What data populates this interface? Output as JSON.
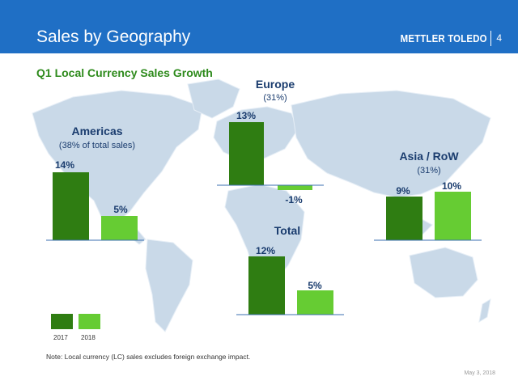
{
  "header": {
    "title": "Sales by Geography",
    "brand": "METTLER TOLEDO",
    "page_number": "4"
  },
  "subtitle": "Q1 Local Currency Sales Growth",
  "colors": {
    "header_bg": "#1f6fc5",
    "bar_2017": "#2f7d12",
    "bar_2018": "#66cc33",
    "text_blue": "#1a3c6e",
    "subtitle_green": "#2d8a1b"
  },
  "legend": {
    "items": [
      "2017",
      "2018"
    ]
  },
  "chart_data": [
    {
      "type": "bar",
      "title": "Americas",
      "subtitle": "(38% of total sales)",
      "categories": [
        "2017",
        "2018"
      ],
      "values": [
        14,
        5
      ],
      "labels": [
        "14%",
        "5%"
      ]
    },
    {
      "type": "bar",
      "title": "Europe",
      "subtitle": "(31%)",
      "categories": [
        "2017",
        "2018"
      ],
      "values": [
        13,
        -1
      ],
      "labels": [
        "13%",
        "-1%"
      ]
    },
    {
      "type": "bar",
      "title": "Asia / RoW",
      "subtitle": "(31%)",
      "categories": [
        "2017",
        "2018"
      ],
      "values": [
        9,
        10
      ],
      "labels": [
        "9%",
        "10%"
      ]
    },
    {
      "type": "bar",
      "title": "Total",
      "subtitle": "",
      "categories": [
        "2017",
        "2018"
      ],
      "values": [
        12,
        5
      ],
      "labels": [
        "12%",
        "5%"
      ]
    }
  ],
  "footer": {
    "note": "Note:  Local currency (LC) sales excludes foreign exchange impact.",
    "date": "May 3, 2018"
  }
}
